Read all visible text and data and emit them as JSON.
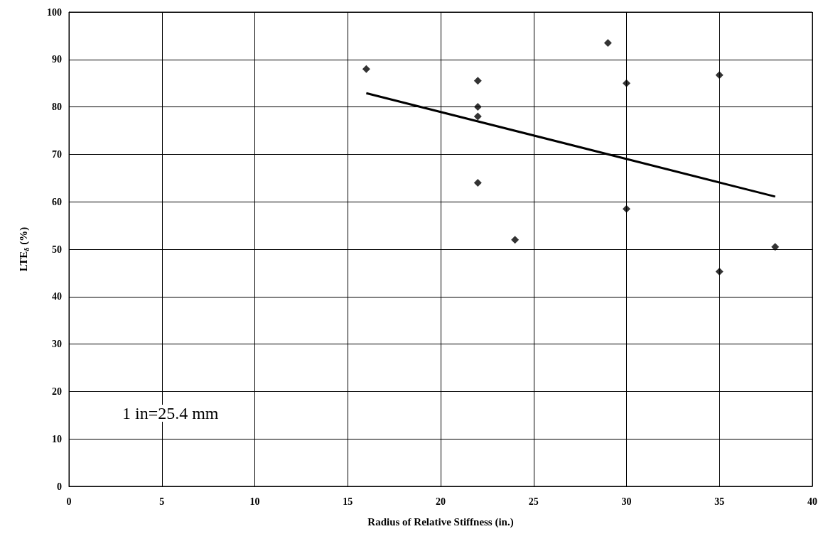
{
  "chart_data": {
    "type": "scatter",
    "xlabel": "Radius of Relative Stiffness (in.)",
    "ylabel": "LTE$_{δ}$ (%)",
    "annotations": [
      "1 in=25.4 mm"
    ],
    "xlim": [
      0,
      40
    ],
    "xticks": [
      0,
      5,
      10,
      15,
      20,
      25,
      30,
      35,
      40
    ],
    "ylim": [
      0,
      100
    ],
    "yticks": [
      0,
      10,
      20,
      30,
      40,
      50,
      60,
      70,
      80,
      90,
      100
    ],
    "grid": true,
    "marker": "diamond",
    "series": [
      {
        "color": "#000000",
        "x": [
          16,
          22,
          22,
          22,
          22,
          24,
          29,
          30,
          30,
          35,
          35,
          38
        ],
        "values": [
          88,
          85.5,
          80,
          78,
          64,
          52,
          93.5,
          85,
          58.5,
          86.7,
          45.3,
          50.5
        ]
      },
      {
        "type": "line",
        "color": "#000000",
        "marker": "none",
        "line_style": "solid",
        "x": [
          16,
          38
        ],
        "values": [
          82.9,
          61.1
        ]
      }
    ]
  }
}
